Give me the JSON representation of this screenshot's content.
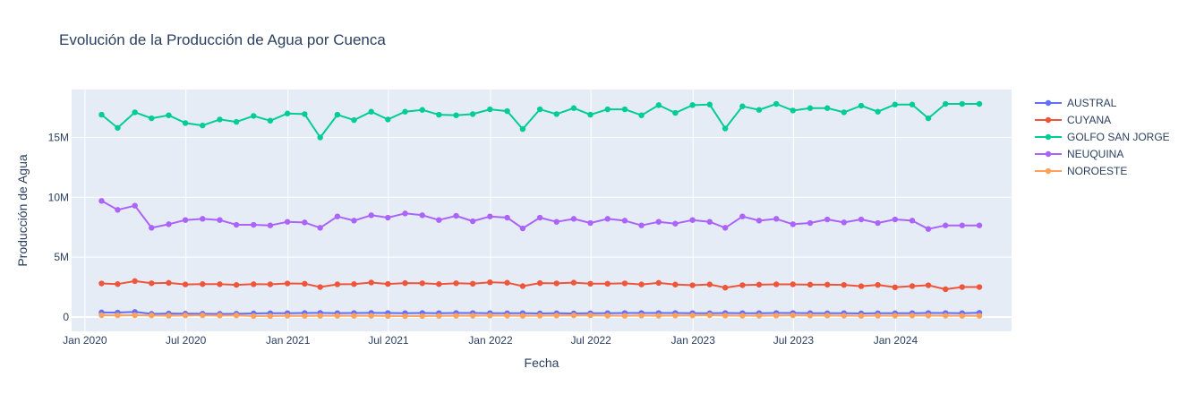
{
  "chart_data": {
    "type": "line",
    "title": "Evolución de la Producción de Agua por Cuenca",
    "xlabel": "Fecha",
    "ylabel": "Producción de Agua",
    "x_range": [
      "2019-12-08",
      "2024-07-28"
    ],
    "ylim": [
      -1200000,
      19000000
    ],
    "x_ticks": [
      {
        "date": "2020-01-01",
        "label": "Jan 2020"
      },
      {
        "date": "2020-07-01",
        "label": "Jul 2020"
      },
      {
        "date": "2021-01-01",
        "label": "Jan 2021"
      },
      {
        "date": "2021-07-01",
        "label": "Jul 2021"
      },
      {
        "date": "2022-01-01",
        "label": "Jan 2022"
      },
      {
        "date": "2022-07-01",
        "label": "Jul 2022"
      },
      {
        "date": "2023-01-01",
        "label": "Jan 2023"
      },
      {
        "date": "2023-07-01",
        "label": "Jul 2023"
      },
      {
        "date": "2024-01-01",
        "label": "Jan 2024"
      }
    ],
    "y_ticks": [
      {
        "value": 0,
        "label": "0"
      },
      {
        "value": 5000000,
        "label": "5M"
      },
      {
        "value": 10000000,
        "label": "10M"
      },
      {
        "value": 15000000,
        "label": "15M"
      }
    ],
    "grid": true,
    "legend_position": "right",
    "x": [
      "2020-01-31",
      "2020-02-29",
      "2020-03-31",
      "2020-04-30",
      "2020-05-31",
      "2020-06-30",
      "2020-07-31",
      "2020-08-31",
      "2020-09-30",
      "2020-10-31",
      "2020-11-30",
      "2020-12-31",
      "2021-01-31",
      "2021-02-28",
      "2021-03-31",
      "2021-04-30",
      "2021-05-31",
      "2021-06-30",
      "2021-07-31",
      "2021-08-31",
      "2021-09-30",
      "2021-10-31",
      "2021-11-30",
      "2021-12-31",
      "2022-01-31",
      "2022-02-28",
      "2022-03-31",
      "2022-04-30",
      "2022-05-31",
      "2022-06-30",
      "2022-07-31",
      "2022-08-31",
      "2022-09-30",
      "2022-10-31",
      "2022-11-30",
      "2022-12-31",
      "2023-01-31",
      "2023-02-28",
      "2023-03-31",
      "2023-04-30",
      "2023-05-31",
      "2023-06-30",
      "2023-07-31",
      "2023-08-31",
      "2023-09-30",
      "2023-10-31",
      "2023-11-30",
      "2023-12-31",
      "2024-01-31",
      "2024-02-29",
      "2024-03-31",
      "2024-04-30",
      "2024-05-31"
    ],
    "series": [
      {
        "name": "AUSTRAL",
        "color": "#636efa",
        "values": [
          380000,
          370000,
          420000,
          260000,
          290000,
          280000,
          270000,
          260000,
          270000,
          300000,
          310000,
          320000,
          330000,
          340000,
          320000,
          330000,
          340000,
          330000,
          320000,
          330000,
          320000,
          330000,
          330000,
          320000,
          310000,
          320000,
          300000,
          310000,
          300000,
          310000,
          320000,
          330000,
          330000,
          330000,
          330000,
          320000,
          310000,
          330000,
          320000,
          320000,
          330000,
          330000,
          320000,
          310000,
          320000,
          300000,
          310000,
          310000,
          320000,
          330000,
          330000,
          320000,
          350000
        ]
      },
      {
        "name": "CUYANA",
        "color": "#ef553b",
        "values": [
          2800000,
          2750000,
          3000000,
          2820000,
          2850000,
          2720000,
          2750000,
          2740000,
          2680000,
          2740000,
          2730000,
          2800000,
          2780000,
          2500000,
          2730000,
          2750000,
          2880000,
          2760000,
          2830000,
          2820000,
          2750000,
          2820000,
          2780000,
          2900000,
          2860000,
          2580000,
          2830000,
          2810000,
          2870000,
          2780000,
          2780000,
          2810000,
          2720000,
          2850000,
          2710000,
          2650000,
          2720000,
          2450000,
          2660000,
          2700000,
          2730000,
          2730000,
          2700000,
          2700000,
          2680000,
          2570000,
          2680000,
          2480000,
          2580000,
          2650000,
          2320000,
          2500000,
          2500000
        ]
      },
      {
        "name": "GOLFO SAN JORGE",
        "color": "#00cc96",
        "values": [
          16900000,
          15800000,
          17100000,
          16600000,
          16850000,
          16200000,
          16000000,
          16500000,
          16300000,
          16800000,
          16400000,
          17000000,
          16950000,
          15000000,
          16900000,
          16450000,
          17150000,
          16500000,
          17150000,
          17300000,
          16900000,
          16850000,
          16950000,
          17350000,
          17200000,
          15700000,
          17350000,
          16950000,
          17450000,
          16900000,
          17350000,
          17350000,
          16850000,
          17700000,
          17050000,
          17700000,
          17750000,
          15750000,
          17600000,
          17300000,
          17800000,
          17250000,
          17450000,
          17450000,
          17100000,
          17650000,
          17150000,
          17750000,
          17750000,
          16600000,
          17800000,
          17800000,
          17800000
        ]
      },
      {
        "name": "NEUQUINA",
        "color": "#ab63fa",
        "values": [
          9700000,
          8950000,
          9300000,
          7450000,
          7750000,
          8100000,
          8200000,
          8100000,
          7700000,
          7700000,
          7650000,
          7950000,
          7900000,
          7450000,
          8400000,
          8050000,
          8500000,
          8300000,
          8650000,
          8500000,
          8100000,
          8450000,
          8000000,
          8400000,
          8300000,
          7400000,
          8300000,
          7950000,
          8200000,
          7850000,
          8200000,
          8050000,
          7650000,
          7950000,
          7800000,
          8100000,
          7950000,
          7450000,
          8400000,
          8050000,
          8200000,
          7750000,
          7850000,
          8150000,
          7900000,
          8150000,
          7850000,
          8150000,
          8050000,
          7350000,
          7650000,
          7650000,
          7650000
        ]
      },
      {
        "name": "NOROESTE",
        "color": "#ffa15a",
        "values": [
          150000,
          140000,
          150000,
          130000,
          110000,
          130000,
          140000,
          120000,
          130000,
          80000,
          80000,
          100000,
          90000,
          100000,
          100000,
          100000,
          100000,
          80000,
          70000,
          80000,
          90000,
          100000,
          110000,
          120000,
          110000,
          100000,
          110000,
          120000,
          130000,
          140000,
          110000,
          100000,
          120000,
          110000,
          120000,
          130000,
          150000,
          120000,
          110000,
          110000,
          120000,
          140000,
          120000,
          120000,
          110000,
          100000,
          110000,
          110000,
          120000,
          120000,
          110000,
          100000,
          100000
        ]
      }
    ]
  }
}
